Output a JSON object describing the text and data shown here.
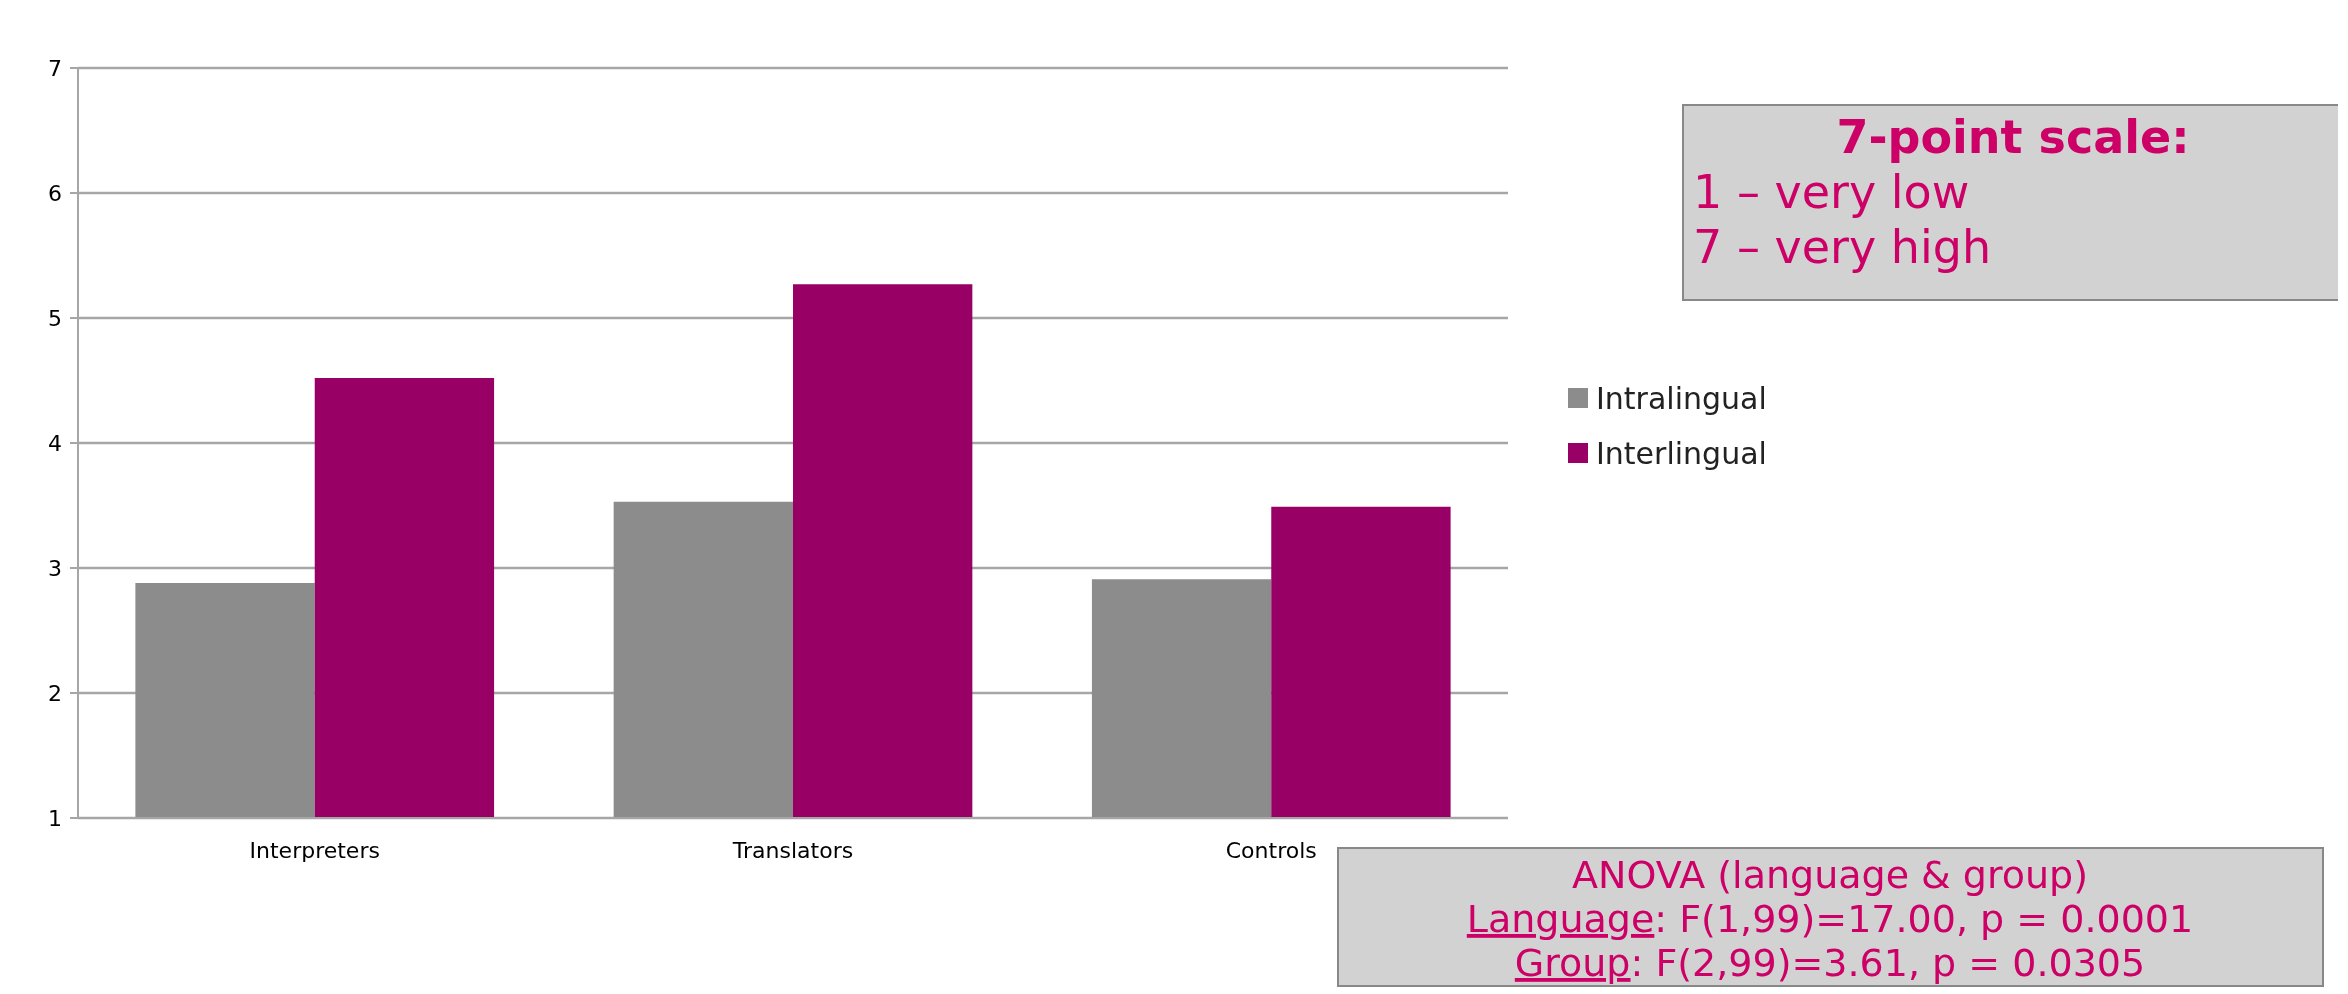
{
  "chart_data": {
    "type": "bar",
    "categories": [
      "Interpreters",
      "Translators",
      "Controls"
    ],
    "series": [
      {
        "name": "Intralingual",
        "color": "#8c8c8c",
        "values": [
          2.88,
          3.53,
          2.91
        ]
      },
      {
        "name": "Interlingual",
        "color": "#990066",
        "values": [
          4.52,
          5.27,
          3.49
        ]
      }
    ],
    "ylim": [
      1,
      7
    ],
    "yticks": [
      1,
      2,
      3,
      4,
      5,
      6,
      7
    ],
    "grid": "y",
    "legend": "right",
    "annotations": [
      "7-point scale:",
      "1 – very low",
      "7 – very high",
      "ANOVA (language & group)",
      "Language: F(1,99)=17.00, p = 0.0001",
      "Group: F(2,99)=3.61, p = 0.0305"
    ]
  }
}
